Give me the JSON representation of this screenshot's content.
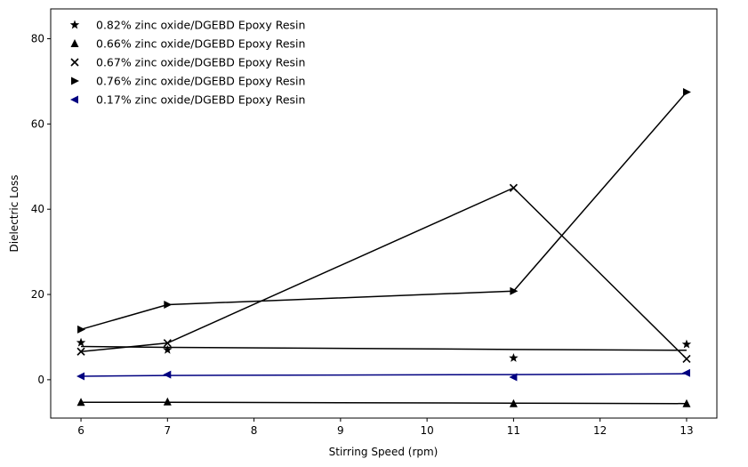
{
  "chart_data": {
    "type": "line",
    "title": "",
    "xlabel": "Stirring Speed (rpm)",
    "ylabel": "Dielectric Loss",
    "x": [
      6,
      7,
      11,
      13
    ],
    "xlim": [
      5.65,
      13.35
    ],
    "ylim": [
      -9,
      87
    ],
    "xticks": [
      6,
      7,
      8,
      9,
      10,
      11,
      12,
      13
    ],
    "yticks": [
      0,
      20,
      40,
      60,
      80
    ],
    "grid": false,
    "legend_position": "top-left",
    "series": [
      {
        "name": "0.82% zinc oxide/DGEBD Epoxy Resin",
        "marker": "star",
        "color": "#000000",
        "values": [
          8.7,
          7.0,
          5.1,
          8.3
        ],
        "fit": [
          7.8,
          7.6,
          7.1,
          6.9
        ]
      },
      {
        "name": "0.66% zinc oxide/DGEBD Epoxy Resin",
        "marker": "triangle-up",
        "color": "#000000",
        "values": [
          -5.3,
          -5.2,
          -5.6,
          -5.6
        ],
        "fit": [
          -5.3,
          -5.3,
          -5.5,
          -5.6
        ]
      },
      {
        "name": "0.67% zinc oxide/DGEBD Epoxy Resin",
        "marker": "x",
        "color": "#000000",
        "values": [
          6.6,
          8.6,
          45.0,
          4.9
        ],
        "fit": [
          6.6,
          8.6,
          45.0,
          4.9
        ]
      },
      {
        "name": "0.76% zinc oxide/DGEBD Epoxy Resin",
        "marker": "triangle-right",
        "color": "#000000",
        "values": [
          11.8,
          17.6,
          20.8,
          67.5
        ],
        "fit": [
          11.8,
          17.6,
          20.8,
          67.5
        ]
      },
      {
        "name": "0.17% zinc oxide/DGEBD Epoxy Resin",
        "marker": "triangle-left",
        "color": "#000080",
        "values": [
          0.8,
          1.2,
          0.6,
          1.6
        ],
        "fit": [
          0.8,
          1.0,
          1.2,
          1.4
        ]
      }
    ]
  }
}
